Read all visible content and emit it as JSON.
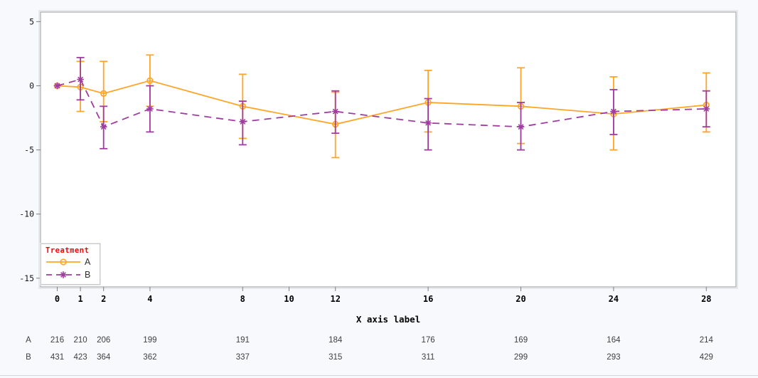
{
  "page": {
    "background": "#f8f9fd",
    "plot_background": "#ffffff"
  },
  "chart_data": {
    "type": "line",
    "title": "",
    "xlabel": "X axis label",
    "ylabel": "",
    "x_ticks": [
      0,
      1,
      2,
      4,
      8,
      10,
      12,
      16,
      20,
      24,
      28
    ],
    "y_ticks": [
      5,
      0,
      -5,
      -10,
      -15
    ],
    "xlim": [
      -0.8,
      29.3
    ],
    "ylim": [
      -15.8,
      5.8
    ],
    "grid": "off",
    "error_bars": "vertical with caps, asymmetric confidence limits",
    "legend": {
      "title": "Treatment",
      "title_color": "#ff0000",
      "position": "bottom-left-inside"
    },
    "series": [
      {
        "name": "A",
        "color": "#FFA628",
        "line_style": "solid",
        "marker": "open-circle",
        "points": [
          {
            "x": 0,
            "y": 0.0
          },
          {
            "x": 1,
            "y": -0.1,
            "lo": -2.0,
            "hi": 1.9
          },
          {
            "x": 2,
            "y": -0.6,
            "lo": -2.8,
            "hi": 1.9
          },
          {
            "x": 4,
            "y": 0.4,
            "lo": -1.6,
            "hi": 2.4
          },
          {
            "x": 8,
            "y": -1.6,
            "lo": -4.1,
            "hi": 0.9
          },
          {
            "x": 12,
            "y": -3.0,
            "lo": -5.6,
            "hi": -0.5
          },
          {
            "x": 16,
            "y": -1.3,
            "lo": -3.6,
            "hi": 1.2
          },
          {
            "x": 20,
            "y": -1.6,
            "lo": -4.5,
            "hi": 1.4
          },
          {
            "x": 24,
            "y": -2.2,
            "lo": -5.0,
            "hi": 0.7
          },
          {
            "x": 28,
            "y": -1.5,
            "lo": -3.6,
            "hi": 1.0
          }
        ]
      },
      {
        "name": "B",
        "color": "#A03CA0",
        "line_style": "dashed",
        "marker": "asterisk",
        "points": [
          {
            "x": 0,
            "y": 0.0
          },
          {
            "x": 1,
            "y": 0.5,
            "lo": -1.1,
            "hi": 2.2
          },
          {
            "x": 2,
            "y": -3.2,
            "lo": -4.9,
            "hi": -1.6
          },
          {
            "x": 4,
            "y": -1.8,
            "lo": -3.6,
            "hi": 0.0
          },
          {
            "x": 8,
            "y": -2.8,
            "lo": -4.6,
            "hi": -1.2
          },
          {
            "x": 12,
            "y": -2.0,
            "lo": -3.7,
            "hi": -0.4
          },
          {
            "x": 16,
            "y": -2.9,
            "lo": -5.0,
            "hi": -1.0
          },
          {
            "x": 20,
            "y": -3.2,
            "lo": -5.0,
            "hi": -1.3
          },
          {
            "x": 24,
            "y": -2.0,
            "lo": -3.8,
            "hi": -0.3
          },
          {
            "x": 28,
            "y": -1.8,
            "lo": -3.2,
            "hi": -0.4
          }
        ]
      }
    ]
  },
  "at_risk_table": {
    "x_positions": [
      0,
      1,
      2,
      4,
      8,
      12,
      16,
      20,
      24,
      28
    ],
    "rows": [
      {
        "label": "A",
        "values": [
          216,
          210,
          206,
          199,
          191,
          184,
          176,
          169,
          164,
          214
        ]
      },
      {
        "label": "B",
        "values": [
          431,
          423,
          364,
          362,
          337,
          315,
          311,
          299,
          293,
          429
        ]
      }
    ]
  }
}
